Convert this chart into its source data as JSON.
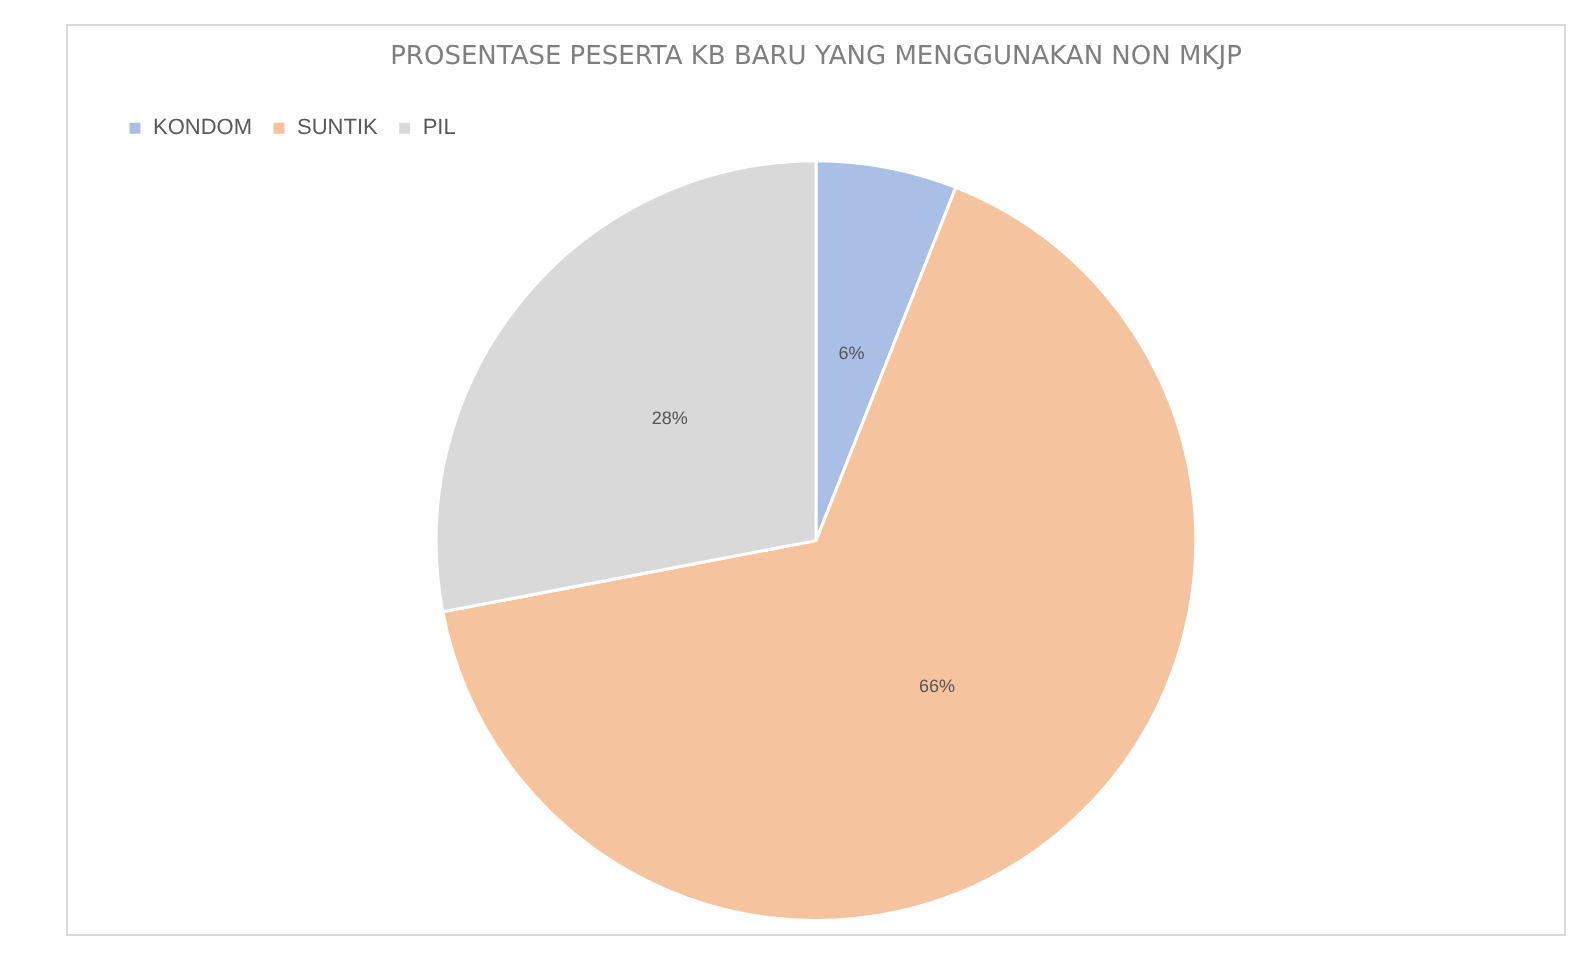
{
  "chart_data": {
    "type": "pie",
    "title": "PROSENTASE PESERTA KB BARU YANG MENGGUNAKAN NON MKJP",
    "categories": [
      "KONDOM",
      "SUNTIK",
      "PIL"
    ],
    "values": [
      6,
      66,
      28
    ],
    "colors": [
      "#a9bfe6",
      "#f5c49e",
      "#d9d9d9"
    ],
    "value_labels": [
      "6%",
      "66%",
      "28%"
    ],
    "legend": "top left"
  }
}
